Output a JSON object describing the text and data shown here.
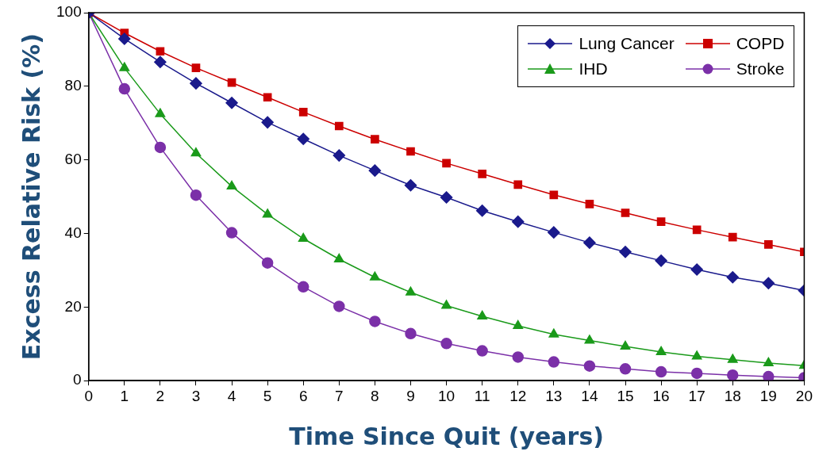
{
  "chart_data": {
    "type": "line",
    "xlabel": "Time Since Quit (years)",
    "ylabel": "Excess Relative Risk (%)",
    "x": [
      0,
      1,
      2,
      3,
      4,
      5,
      6,
      7,
      8,
      9,
      10,
      11,
      12,
      13,
      14,
      15,
      16,
      17,
      18,
      19,
      20
    ],
    "xlim": [
      0,
      20
    ],
    "xticks": [
      0,
      1,
      2,
      3,
      4,
      5,
      6,
      7,
      8,
      9,
      10,
      11,
      12,
      13,
      14,
      15,
      16,
      17,
      18,
      19,
      20
    ],
    "ylim": [
      0,
      100
    ],
    "yticks": [
      0,
      20,
      40,
      60,
      80,
      100
    ],
    "grid": false,
    "legend": "top right",
    "line_style": "solid",
    "series": [
      {
        "name": "Lung Cancer",
        "color": "#1a1a8c",
        "marker": "diamond",
        "values": [
          100,
          92.9,
          86.6,
          80.8,
          75.5,
          70.2,
          65.7,
          61.2,
          57.1,
          53.1,
          49.8,
          46.2,
          43.2,
          40.3,
          37.5,
          35.0,
          32.6,
          30.2,
          28.1,
          26.5,
          24.5
        ]
      },
      {
        "name": "COPD",
        "color": "#cc0000",
        "marker": "square",
        "values": [
          100,
          94.5,
          89.5,
          85,
          81,
          77,
          73,
          69.2,
          65.6,
          62.3,
          59.1,
          56.2,
          53.3,
          50.5,
          48,
          45.6,
          43.2,
          41,
          39,
          37,
          35
        ]
      },
      {
        "name": "IHD",
        "color": "#1a9a1a",
        "marker": "triangle",
        "values": [
          100,
          85,
          72.5,
          61.8,
          52.8,
          45.2,
          38.6,
          33,
          28.1,
          24,
          20.4,
          17.5,
          14.9,
          12.6,
          10.9,
          9.3,
          7.8,
          6.6,
          5.7,
          4.8,
          4.1
        ]
      },
      {
        "name": "Stroke",
        "color": "#7b30a8",
        "marker": "circle",
        "values": [
          100,
          79.3,
          63.4,
          50.4,
          40.2,
          32,
          25.5,
          20.2,
          16.1,
          12.8,
          10.1,
          8.1,
          6.4,
          5.1,
          4,
          3.2,
          2.4,
          2,
          1.5,
          1.1,
          0.8
        ]
      }
    ]
  }
}
